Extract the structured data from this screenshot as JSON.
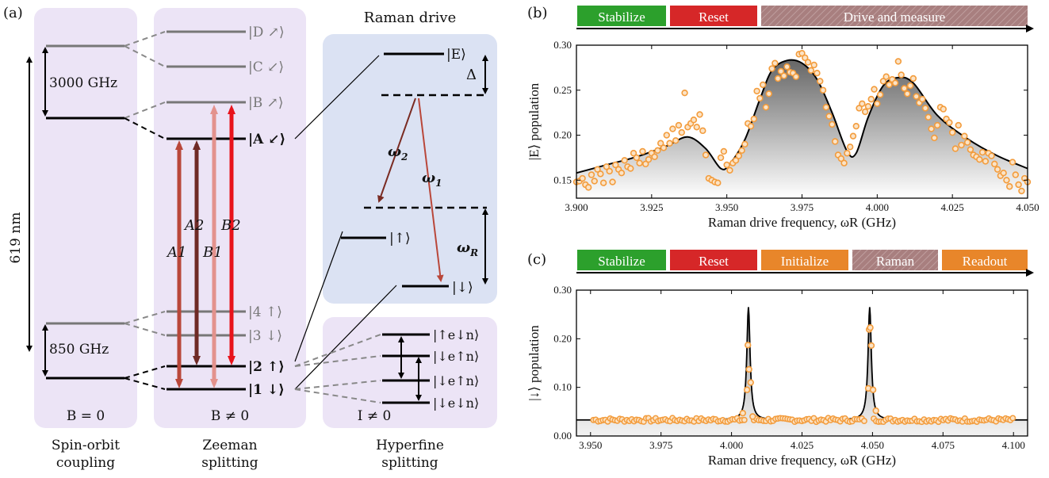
{
  "panel_a": {
    "panel_label": "(a)",
    "soc": {
      "gap_upper": "3000 GHz",
      "gap_lower": "850 GHz",
      "wavelength": "619 nm",
      "field": "B = 0",
      "title": [
        "Spin-orbit",
        "coupling"
      ]
    },
    "zeeman": {
      "states": [
        "|D ↗⟩",
        "|C ↙⟩",
        "|B ↗⟩",
        "|A ↙⟩",
        "|4 ↑⟩",
        "|3 ↓⟩",
        "|2 ↑⟩",
        "|1 ↓⟩"
      ],
      "transitions": [
        "A1",
        "A2",
        "B1",
        "B2"
      ],
      "field": "B ≠ 0",
      "title": [
        "Zeeman",
        "splitting"
      ]
    },
    "raman": {
      "title": "Raman drive",
      "states": [
        "|E⟩",
        "|↑⟩",
        "|↓⟩"
      ],
      "delta": "Δ",
      "omega1": "ω",
      "omega1_sub": "1",
      "omega2": "ω",
      "omega2_sub": "2",
      "omegaR": "ω",
      "omegaR_sub": "R"
    },
    "hyperfine": {
      "states": [
        "|↑e↓n⟩",
        "|↓e↑n⟩",
        "|↓e↑n⟩",
        "|↓e↓n⟩"
      ],
      "field": "I ≠ 0",
      "title": [
        "Hyperfine",
        "splitting"
      ]
    }
  },
  "panel_b": {
    "panel_label": "(b)",
    "sequence": [
      "Stabilize",
      "Reset",
      "Drive and measure"
    ],
    "colors": {
      "stabilize": "#2ca02c",
      "reset": "#d62728",
      "drive": "#a87f7f",
      "initialize": "#e8862a",
      "marker": "#f39c3c"
    }
  },
  "panel_c": {
    "panel_label": "(c)",
    "sequence": [
      "Stabilize",
      "Reset",
      "Initialize",
      "Raman",
      "Readout"
    ]
  },
  "chart_data": [
    {
      "type": "scatter",
      "xlabel": "Raman drive frequency, ωR (GHz)",
      "ylabel": "|E⟩ population",
      "xlim": [
        3.9,
        4.05
      ],
      "ylim": [
        0.13,
        0.3
      ],
      "xticks": [
        "3.900",
        "3.925",
        "3.950",
        "3.975",
        "4.000",
        "4.025",
        "4.050"
      ],
      "yticks": [
        "0.15",
        "0.20",
        "0.25",
        "0.30"
      ],
      "fit_curve": [
        [
          3.9,
          0.158
        ],
        [
          3.91,
          0.167
        ],
        [
          3.92,
          0.176
        ],
        [
          3.93,
          0.188
        ],
        [
          3.937,
          0.198
        ],
        [
          3.943,
          0.185
        ],
        [
          3.948,
          0.163
        ],
        [
          3.951,
          0.168
        ],
        [
          3.956,
          0.195
        ],
        [
          3.961,
          0.24
        ],
        [
          3.965,
          0.272
        ],
        [
          3.97,
          0.283
        ],
        [
          3.975,
          0.28
        ],
        [
          3.98,
          0.262
        ],
        [
          3.985,
          0.225
        ],
        [
          3.99,
          0.182
        ],
        [
          3.993,
          0.18
        ],
        [
          3.997,
          0.22
        ],
        [
          4.002,
          0.255
        ],
        [
          4.007,
          0.264
        ],
        [
          4.012,
          0.258
        ],
        [
          4.02,
          0.222
        ],
        [
          4.03,
          0.196
        ],
        [
          4.04,
          0.177
        ],
        [
          4.05,
          0.163
        ]
      ],
      "points": [
        [
          3.9,
          0.148
        ],
        [
          3.901,
          0.149
        ],
        [
          3.902,
          0.152
        ],
        [
          3.903,
          0.145
        ],
        [
          3.904,
          0.142
        ],
        [
          3.905,
          0.156
        ],
        [
          3.906,
          0.149
        ],
        [
          3.907,
          0.162
        ],
        [
          3.908,
          0.157
        ],
        [
          3.909,
          0.147
        ],
        [
          3.91,
          0.165
        ],
        [
          3.911,
          0.16
        ],
        [
          3.912,
          0.148
        ],
        [
          3.913,
          0.167
        ],
        [
          3.914,
          0.162
        ],
        [
          3.915,
          0.158
        ],
        [
          3.916,
          0.172
        ],
        [
          3.917,
          0.165
        ],
        [
          3.918,
          0.163
        ],
        [
          3.919,
          0.18
        ],
        [
          3.92,
          0.175
        ],
        [
          3.921,
          0.169
        ],
        [
          3.922,
          0.182
        ],
        [
          3.923,
          0.168
        ],
        [
          3.924,
          0.173
        ],
        [
          3.925,
          0.18
        ],
        [
          3.926,
          0.176
        ],
        [
          3.927,
          0.183
        ],
        [
          3.928,
          0.191
        ],
        [
          3.929,
          0.186
        ],
        [
          3.93,
          0.2
        ],
        [
          3.931,
          0.191
        ],
        [
          3.932,
          0.207
        ],
        [
          3.933,
          0.194
        ],
        [
          3.934,
          0.211
        ],
        [
          3.935,
          0.203
        ],
        [
          3.936,
          0.247
        ],
        [
          3.937,
          0.209
        ],
        [
          3.938,
          0.213
        ],
        [
          3.939,
          0.217
        ],
        [
          3.94,
          0.209
        ],
        [
          3.941,
          0.223
        ],
        [
          3.942,
          0.205
        ],
        [
          3.943,
          0.178
        ],
        [
          3.944,
          0.152
        ],
        [
          3.945,
          0.15
        ],
        [
          3.946,
          0.148
        ],
        [
          3.947,
          0.147
        ],
        [
          3.948,
          0.175
        ],
        [
          3.949,
          0.182
        ],
        [
          3.95,
          0.167
        ],
        [
          3.951,
          0.161
        ],
        [
          3.952,
          0.169
        ],
        [
          3.953,
          0.172
        ],
        [
          3.954,
          0.177
        ],
        [
          3.955,
          0.183
        ],
        [
          3.956,
          0.19
        ],
        [
          3.957,
          0.213
        ],
        [
          3.958,
          0.21
        ],
        [
          3.959,
          0.218
        ],
        [
          3.96,
          0.249
        ],
        [
          3.961,
          0.241
        ],
        [
          3.962,
          0.256
        ],
        [
          3.963,
          0.231
        ],
        [
          3.964,
          0.246
        ],
        [
          3.965,
          0.274
        ],
        [
          3.966,
          0.28
        ],
        [
          3.967,
          0.263
        ],
        [
          3.968,
          0.271
        ],
        [
          3.969,
          0.266
        ],
        [
          3.97,
          0.276
        ],
        [
          3.971,
          0.27
        ],
        [
          3.972,
          0.269
        ],
        [
          3.973,
          0.265
        ],
        [
          3.974,
          0.29
        ],
        [
          3.975,
          0.291
        ],
        [
          3.976,
          0.286
        ],
        [
          3.977,
          0.281
        ],
        [
          3.978,
          0.272
        ],
        [
          3.979,
          0.278
        ],
        [
          3.98,
          0.269
        ],
        [
          3.981,
          0.26
        ],
        [
          3.982,
          0.25
        ],
        [
          3.983,
          0.231
        ],
        [
          3.984,
          0.221
        ],
        [
          3.985,
          0.212
        ],
        [
          3.986,
          0.193
        ],
        [
          3.987,
          0.178
        ],
        [
          3.988,
          0.174
        ],
        [
          3.989,
          0.169
        ],
        [
          3.99,
          0.18
        ],
        [
          3.991,
          0.187
        ],
        [
          3.992,
          0.199
        ],
        [
          3.993,
          0.21
        ],
        [
          3.994,
          0.23
        ],
        [
          3.995,
          0.235
        ],
        [
          3.996,
          0.226
        ],
        [
          3.997,
          0.232
        ],
        [
          3.998,
          0.24
        ],
        [
          3.999,
          0.251
        ],
        [
          4.0,
          0.235
        ],
        [
          4.001,
          0.245
        ],
        [
          4.002,
          0.26
        ],
        [
          4.003,
          0.265
        ],
        [
          4.004,
          0.256
        ],
        [
          4.005,
          0.262
        ],
        [
          4.006,
          0.258
        ],
        [
          4.007,
          0.282
        ],
        [
          4.008,
          0.267
        ],
        [
          4.009,
          0.252
        ],
        [
          4.01,
          0.246
        ],
        [
          4.011,
          0.255
        ],
        [
          4.012,
          0.263
        ],
        [
          4.013,
          0.243
        ],
        [
          4.014,
          0.236
        ],
        [
          4.015,
          0.24
        ],
        [
          4.016,
          0.23
        ],
        [
          4.017,
          0.22
        ],
        [
          4.018,
          0.207
        ],
        [
          4.019,
          0.197
        ],
        [
          4.02,
          0.211
        ],
        [
          4.021,
          0.231
        ],
        [
          4.022,
          0.229
        ],
        [
          4.023,
          0.218
        ],
        [
          4.024,
          0.214
        ],
        [
          4.025,
          0.203
        ],
        [
          4.026,
          0.185
        ],
        [
          4.027,
          0.211
        ],
        [
          4.028,
          0.189
        ],
        [
          4.029,
          0.199
        ],
        [
          4.03,
          0.192
        ],
        [
          4.031,
          0.184
        ],
        [
          4.032,
          0.178
        ],
        [
          4.033,
          0.176
        ],
        [
          4.034,
          0.173
        ],
        [
          4.035,
          0.181
        ],
        [
          4.036,
          0.171
        ],
        [
          4.037,
          0.18
        ],
        [
          4.038,
          0.177
        ],
        [
          4.039,
          0.168
        ],
        [
          4.04,
          0.162
        ],
        [
          4.041,
          0.155
        ],
        [
          4.042,
          0.158
        ],
        [
          4.043,
          0.15
        ],
        [
          4.044,
          0.143
        ],
        [
          4.045,
          0.17
        ],
        [
          4.046,
          0.156
        ],
        [
          4.047,
          0.145
        ],
        [
          4.048,
          0.138
        ],
        [
          4.049,
          0.152
        ],
        [
          4.05,
          0.148
        ]
      ]
    },
    {
      "type": "scatter",
      "xlabel": "Raman drive frequency, ωR (GHz)",
      "ylabel": "|↓⟩ population",
      "xlim": [
        3.945,
        4.105
      ],
      "ylim": [
        0.0,
        0.3
      ],
      "xticks": [
        "3.950",
        "3.975",
        "4.000",
        "4.025",
        "4.050",
        "4.075",
        "4.100"
      ],
      "yticks": [
        "0.00",
        "0.10",
        "0.20",
        "0.30"
      ],
      "peaks": [
        4.006,
        4.049
      ],
      "peak_height": 0.265,
      "baseline": 0.033,
      "peak_points": [
        [
          4.0055,
          0.095
        ],
        [
          4.0058,
          0.187
        ],
        [
          4.0062,
          0.137
        ],
        [
          4.0068,
          0.11
        ],
        [
          4.0075,
          0.04
        ],
        [
          4.0485,
          0.098
        ],
        [
          4.0488,
          0.219
        ],
        [
          4.0492,
          0.223
        ],
        [
          4.0496,
          0.186
        ],
        [
          4.0502,
          0.095
        ],
        [
          4.0512,
          0.052
        ],
        [
          4.004,
          0.047
        ]
      ]
    }
  ]
}
